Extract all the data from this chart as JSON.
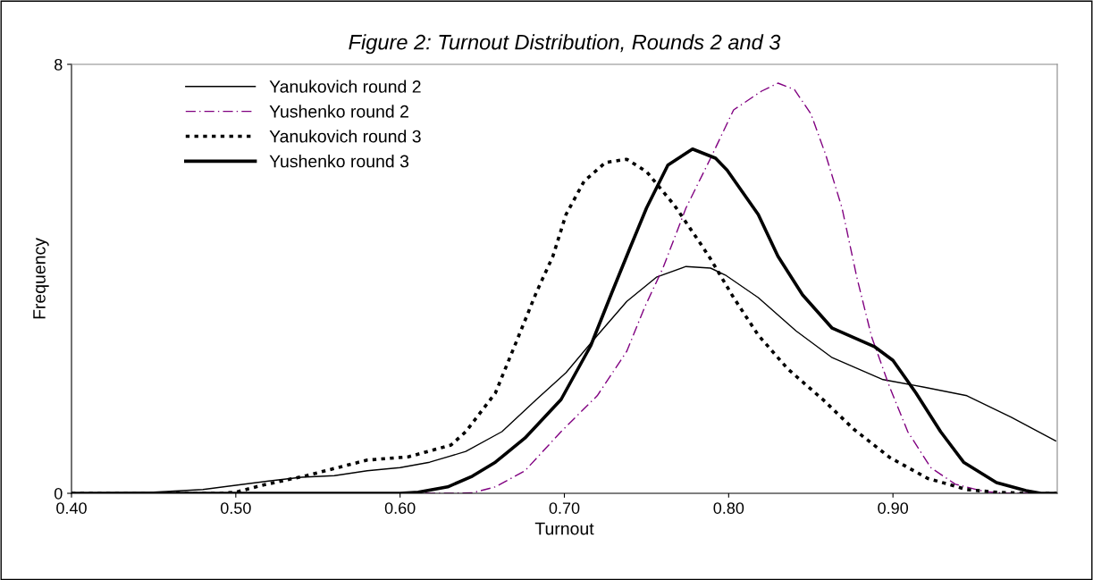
{
  "chart_data": {
    "type": "line",
    "title": "Figure 2: Turnout Distribution, Rounds 2 and 3",
    "xlabel": "Turnout",
    "ylabel": "Frequency",
    "xlim": [
      0.4,
      1.0
    ],
    "ylim": [
      0,
      8
    ],
    "xticks": [
      {
        "value": 0.4,
        "label": "0.40"
      },
      {
        "value": 0.5,
        "label": "0.50"
      },
      {
        "value": 0.6,
        "label": "0.60"
      },
      {
        "value": 0.7,
        "label": "0.70"
      },
      {
        "value": 0.8,
        "label": "0.80"
      },
      {
        "value": 0.9,
        "label": "0.90"
      }
    ],
    "yticks": [
      0,
      8
    ],
    "grid": false,
    "legend": "top left",
    "marker": "none",
    "series": [
      {
        "name": "Yanukovich round 2",
        "color": "#000000",
        "line_style": "solid",
        "x": [
          0.4,
          0.45,
          0.48,
          0.5,
          0.52,
          0.54,
          0.56,
          0.58,
          0.6,
          0.618,
          0.64,
          0.662,
          0.683,
          0.701,
          0.718,
          0.738,
          0.756,
          0.774,
          0.789,
          0.798,
          0.818,
          0.841,
          0.863,
          0.894,
          0.919,
          0.945,
          0.972,
          0.999
        ],
        "values": [
          0,
          0.02,
          0.07,
          0.15,
          0.23,
          0.3,
          0.33,
          0.42,
          0.48,
          0.58,
          0.78,
          1.15,
          1.75,
          2.25,
          2.87,
          3.58,
          4.03,
          4.23,
          4.2,
          4.07,
          3.65,
          3.03,
          2.53,
          2.12,
          1.98,
          1.82,
          1.42,
          0.98
        ]
      },
      {
        "name": "Yushenko round 2",
        "color": "#800080",
        "line_style": "dashdot",
        "x": [
          0.4,
          0.63,
          0.644,
          0.658,
          0.676,
          0.698,
          0.72,
          0.738,
          0.749,
          0.76,
          0.774,
          0.789,
          0.803,
          0.82,
          0.83,
          0.84,
          0.85,
          0.859,
          0.869,
          0.878,
          0.887,
          0.898,
          0.909,
          0.923,
          0.938,
          0.956,
          0.97,
          1.0
        ],
        "values": [
          0,
          0,
          0.01,
          0.12,
          0.42,
          1.15,
          1.82,
          2.65,
          3.48,
          4.2,
          5.32,
          6.25,
          7.15,
          7.5,
          7.65,
          7.53,
          7.08,
          6.32,
          5.32,
          4.03,
          2.92,
          1.98,
          1.15,
          0.48,
          0.17,
          0.03,
          0,
          0
        ]
      },
      {
        "name": "Yanukovich round 3",
        "color": "#000000",
        "line_style": "dotted",
        "x": [
          0.4,
          0.49,
          0.5,
          0.516,
          0.543,
          0.58,
          0.605,
          0.631,
          0.64,
          0.658,
          0.672,
          0.683,
          0.693,
          0.701,
          0.712,
          0.725,
          0.738,
          0.75,
          0.767,
          0.783,
          0.789,
          0.803,
          0.818,
          0.836,
          0.858,
          0.876,
          0.898,
          0.921,
          0.945,
          0.963,
          0.98,
          1.0
        ],
        "values": [
          0,
          0,
          0.02,
          0.15,
          0.33,
          0.62,
          0.68,
          0.9,
          1.15,
          1.87,
          2.92,
          3.75,
          4.42,
          5.2,
          5.82,
          6.17,
          6.23,
          6.0,
          5.37,
          4.65,
          4.37,
          3.65,
          2.95,
          2.32,
          1.73,
          1.2,
          0.67,
          0.28,
          0.07,
          0.02,
          0,
          0
        ]
      },
      {
        "name": "Yushenko round 3",
        "color": "#000000",
        "line_style": "solid",
        "x": [
          0.4,
          0.6,
          0.611,
          0.629,
          0.644,
          0.658,
          0.676,
          0.698,
          0.716,
          0.729,
          0.74,
          0.75,
          0.763,
          0.778,
          0.792,
          0.799,
          0.818,
          0.83,
          0.845,
          0.863,
          0.889,
          0.9,
          0.914,
          0.929,
          0.943,
          0.963,
          0.981,
          0.99,
          1.0
        ],
        "values": [
          0,
          0,
          0.02,
          0.12,
          0.32,
          0.58,
          1.03,
          1.75,
          2.75,
          3.75,
          4.58,
          5.32,
          6.12,
          6.42,
          6.25,
          6.03,
          5.2,
          4.42,
          3.7,
          3.08,
          2.73,
          2.48,
          1.87,
          1.15,
          0.58,
          0.2,
          0.05,
          0,
          0
        ]
      }
    ]
  }
}
